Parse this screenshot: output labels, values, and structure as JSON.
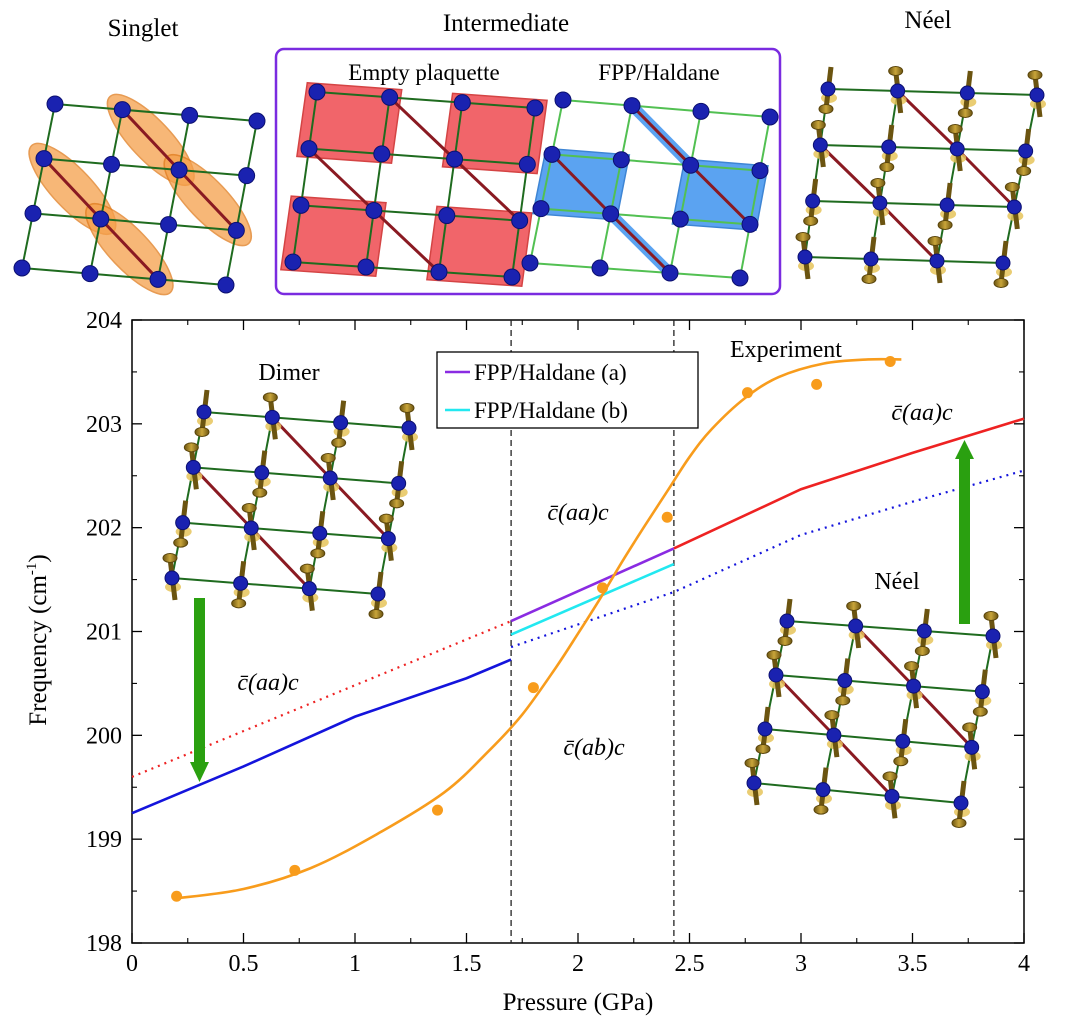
{
  "top_panels": {
    "singlet_title": "Singlet",
    "intermediate_title": "Intermediate",
    "empty_plaquette_title": "Empty plaquette",
    "fpp_haldane_title": "FPP/Haldane",
    "neel_title": "Néel"
  },
  "inset_labels": {
    "dimer": "Dimer",
    "neel": "Néel",
    "experiment": "Experiment"
  },
  "annotations": {
    "aa_left": "c̄(aa)c",
    "aa_middle": "c̄(aa)c",
    "aa_right": "c̄(aa)c",
    "ab_middle": "c̄(ab)c"
  },
  "colors": {
    "dimer_solid": "#1414dc",
    "dimer_dotted": "#ee2222",
    "neel_solid": "#ee2222",
    "neel_dotted": "#1414dc",
    "fpp_a": "#8a2be2",
    "fpp_b": "#22e8f0",
    "experiment": "#f89c1c",
    "arrow": "#2aa010",
    "atom": "#1a22b0",
    "bond_green": "#1f6b1f",
    "bond_red": "#8a1a22",
    "plaquette_red": "#f0555a",
    "plaquette_blue": "#4a9af0",
    "dimer_orange": "#f5a04a",
    "frame_purple": "#7a2be0"
  },
  "chart_data": {
    "type": "line",
    "xlabel": "Pressure (GPa)",
    "ylabel": "Frequency (cm",
    "ylabel_sup": "-1",
    "ylabel_close": ")",
    "xlim": [
      0,
      4
    ],
    "ylim": [
      198,
      204
    ],
    "xticks": [
      0,
      0.5,
      1,
      1.5,
      2,
      2.5,
      3,
      3.5,
      4
    ],
    "xtick_labels": [
      "0",
      "0.5",
      "1",
      "1.5",
      "2",
      "2.5",
      "3",
      "3.5",
      "4"
    ],
    "yticks": [
      198,
      199,
      200,
      201,
      202,
      203,
      204
    ],
    "ytick_labels": [
      "198",
      "199",
      "200",
      "201",
      "202",
      "203",
      "204"
    ],
    "vlines": [
      1.7,
      2.43
    ],
    "series": [
      {
        "name": "Dimer (solid)",
        "style": "solid",
        "x": [
          0,
          0.5,
          1,
          1.5,
          1.7
        ],
        "y": [
          199.25,
          199.7,
          200.18,
          200.55,
          200.73
        ]
      },
      {
        "name": "Dimer (extrapolated)",
        "style": "dotted",
        "x": [
          0,
          1.7
        ],
        "y": [
          199.6,
          201.1
        ]
      },
      {
        "name": "FPP/Haldane (a)",
        "style": "solid",
        "x": [
          1.7,
          2.43
        ],
        "y": [
          201.1,
          201.8
        ]
      },
      {
        "name": "FPP/Haldane (b)",
        "style": "solid",
        "x": [
          1.7,
          2.43
        ],
        "y": [
          200.97,
          201.65
        ]
      },
      {
        "name": "Néel (solid)",
        "style": "solid",
        "x": [
          2.43,
          3,
          3.5,
          4
        ],
        "y": [
          201.8,
          202.37,
          202.72,
          203.05
        ]
      },
      {
        "name": "Néel (extrapolated)",
        "style": "dotted",
        "x": [
          1.7,
          2.43,
          3,
          3.5,
          4
        ],
        "y": [
          200.85,
          201.38,
          201.93,
          202.25,
          202.55
        ]
      },
      {
        "name": "Experiment fit",
        "style": "solid",
        "x": [
          0.2,
          0.5,
          0.8,
          1.1,
          1.4,
          1.6,
          1.75,
          1.9,
          2.0,
          2.1,
          2.2,
          2.3,
          2.4,
          2.5,
          2.6,
          2.75,
          2.9,
          3.1,
          3.3,
          3.45
        ],
        "y": [
          198.43,
          198.52,
          198.72,
          199.05,
          199.45,
          199.85,
          200.2,
          200.65,
          200.98,
          201.32,
          201.68,
          202.02,
          202.35,
          202.68,
          202.95,
          203.25,
          203.45,
          203.58,
          203.62,
          203.62
        ]
      }
    ],
    "experiment_points": {
      "name": "Experiment",
      "x": [
        0.2,
        0.73,
        1.37,
        1.8,
        2.11,
        2.4,
        2.76,
        3.07,
        3.4
      ],
      "y": [
        198.45,
        198.7,
        199.28,
        200.46,
        201.42,
        202.1,
        203.3,
        203.38,
        203.6
      ]
    },
    "legend": [
      "FPP/Haldane (a)",
      "FPP/Haldane (b)"
    ],
    "legend_position": "top-center"
  }
}
